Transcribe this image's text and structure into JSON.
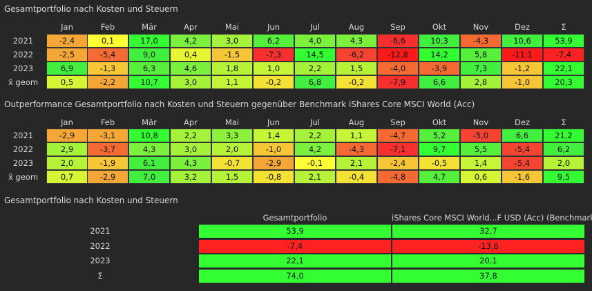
{
  "chart_data": [
    {
      "type": "heatmap",
      "title": "Gesamtportfolio nach Kosten und Steuern",
      "columns": [
        "Jan",
        "Feb",
        "Mär",
        "Apr",
        "Mai",
        "Jun",
        "Jul",
        "Aug",
        "Sep",
        "Okt",
        "Nov",
        "Dez",
        "Σ"
      ],
      "rows": [
        {
          "label": "2021",
          "values": [
            "-2,4",
            "0,1",
            "17,0",
            "4,2",
            "3,0",
            "6,2",
            "4,0",
            "4,3",
            "-6,6",
            "10,3",
            "-4,3",
            "10,6",
            "53,9"
          ],
          "colors": [
            "#f4a636",
            "#ffff33",
            "#33ff33",
            "#7cf13d",
            "#a5f23b",
            "#56ef3c",
            "#7cf13d",
            "#7cf13d",
            "#f82f2f",
            "#42ef3e",
            "#f56a33",
            "#42ef3e",
            "#33ff33"
          ]
        },
        {
          "label": "2022",
          "values": [
            "-2,5",
            "-5,4",
            "9,0",
            "0,4",
            "-1,5",
            "-7,3",
            "14,5",
            "-6,2",
            "-12,8",
            "14,2",
            "5,8",
            "-11,1",
            "-7,4"
          ],
          "colors": [
            "#f4a636",
            "#f66b33",
            "#42ef3e",
            "#e8f533",
            "#f7c636",
            "#f82f2f",
            "#33ff33",
            "#f64433",
            "#ff1a1a",
            "#33ff33",
            "#56ef3c",
            "#ff1a1a",
            "#ff2222"
          ]
        },
        {
          "label": "2023",
          "values": [
            "6,9",
            "-1,3",
            "6,3",
            "4,6",
            "1,8",
            "1,0",
            "2,2",
            "1,5",
            "-4,0",
            "-3,9",
            "7,3",
            "-1,2",
            "22,1"
          ],
          "colors": [
            "#42ef3e",
            "#f7c636",
            "#56ef3c",
            "#7cf13d",
            "#b6f238",
            "#c6f436",
            "#a5f23b",
            "#b6f238",
            "#f56a33",
            "#f56a33",
            "#42ef3e",
            "#f7c636",
            "#33ff33"
          ]
        },
        {
          "label": "x̃ geom",
          "values": [
            "0,5",
            "-2,2",
            "10,7",
            "3,0",
            "1,1",
            "-0,2",
            "6,8",
            "-0,2",
            "-7,9",
            "6,6",
            "2,8",
            "-1,0",
            "20,3"
          ],
          "colors": [
            "#d6f535",
            "#f4a636",
            "#33ff33",
            "#a5f23b",
            "#c6f436",
            "#f3e233",
            "#42ef3e",
            "#f3e233",
            "#f82f2f",
            "#42ef3e",
            "#a5f23b",
            "#f7c636",
            "#33ff33"
          ]
        }
      ]
    },
    {
      "type": "heatmap",
      "title": "Outperformance Gesamtportfolio nach Kosten und Steuern gegenüber Benchmark iShares Core MSCI World (Acc)",
      "columns": [
        "Jan",
        "Feb",
        "Mär",
        "Apr",
        "Mai",
        "Jun",
        "Jul",
        "Aug",
        "Sep",
        "Okt",
        "Nov",
        "Dez",
        "Σ"
      ],
      "rows": [
        {
          "label": "2021",
          "values": [
            "-2,9",
            "-3,1",
            "10,8",
            "2,2",
            "3,3",
            "1,4",
            "2,2",
            "1,1",
            "-4,7",
            "5,2",
            "-5,0",
            "6,6",
            "21,2"
          ],
          "colors": [
            "#f4a636",
            "#f4a636",
            "#33ff33",
            "#a5f23b",
            "#8cf13c",
            "#c6f436",
            "#a5f23b",
            "#c6f436",
            "#f56a33",
            "#56ef3c",
            "#f64433",
            "#42ef3e",
            "#33ff33"
          ]
        },
        {
          "label": "2022",
          "values": [
            "2,9",
            "-3,7",
            "4,3",
            "3,0",
            "2,0",
            "-1,0",
            "4,2",
            "-4,3",
            "-7,1",
            "9,7",
            "5,5",
            "-5,4",
            "6,2"
          ],
          "colors": [
            "#a5f23b",
            "#f56a33",
            "#7cf13d",
            "#a5f23b",
            "#b6f238",
            "#f7c636",
            "#7cf13d",
            "#f56a33",
            "#f82f2f",
            "#33ff33",
            "#56ef3c",
            "#f64433",
            "#42ef3e"
          ]
        },
        {
          "label": "2023",
          "values": [
            "2,0",
            "-1,9",
            "6,1",
            "4,3",
            "-0,7",
            "-2,9",
            "-0,1",
            "2,1",
            "-2,4",
            "-0,5",
            "1,4",
            "-5,4",
            "2,0"
          ],
          "colors": [
            "#b6f238",
            "#f7c636",
            "#42ef3e",
            "#7cf13d",
            "#f3e233",
            "#f4a636",
            "#ffff33",
            "#b6f238",
            "#f7c636",
            "#f3e233",
            "#c6f436",
            "#f64433",
            "#b6f238"
          ]
        },
        {
          "label": "x̃ geom",
          "values": [
            "0,7",
            "-2,9",
            "7,0",
            "3,2",
            "1,5",
            "-0,8",
            "2,1",
            "-0,4",
            "-4,8",
            "4,7",
            "0,6",
            "-1,6",
            "9,5"
          ],
          "colors": [
            "#d6f535",
            "#f4a636",
            "#42ef3e",
            "#a5f23b",
            "#b6f238",
            "#f3e233",
            "#b6f238",
            "#f3e233",
            "#f56a33",
            "#56ef3c",
            "#d6f535",
            "#f7c636",
            "#33ff33"
          ]
        }
      ]
    },
    {
      "type": "table",
      "title": "Gesamtportfolio nach Kosten und Steuern",
      "columns": [
        "Gesamtportfolio",
        "iShares Core MSCI World...F USD (Acc) (Benchmark)"
      ],
      "rows": [
        {
          "label": "2021",
          "values": [
            "53,9",
            "32,7"
          ],
          "colors": [
            "#33ff33",
            "#33ff33"
          ]
        },
        {
          "label": "2022",
          "values": [
            "-7,4",
            "-13,6"
          ],
          "colors": [
            "#ff2222",
            "#ff2222"
          ]
        },
        {
          "label": "2023",
          "values": [
            "22,1",
            "20,1"
          ],
          "colors": [
            "#33ff33",
            "#33ff33"
          ]
        },
        {
          "label": "Σ",
          "values": [
            "74,0",
            "37,8"
          ],
          "colors": [
            "#33ff33",
            "#33ff33"
          ]
        }
      ]
    }
  ]
}
